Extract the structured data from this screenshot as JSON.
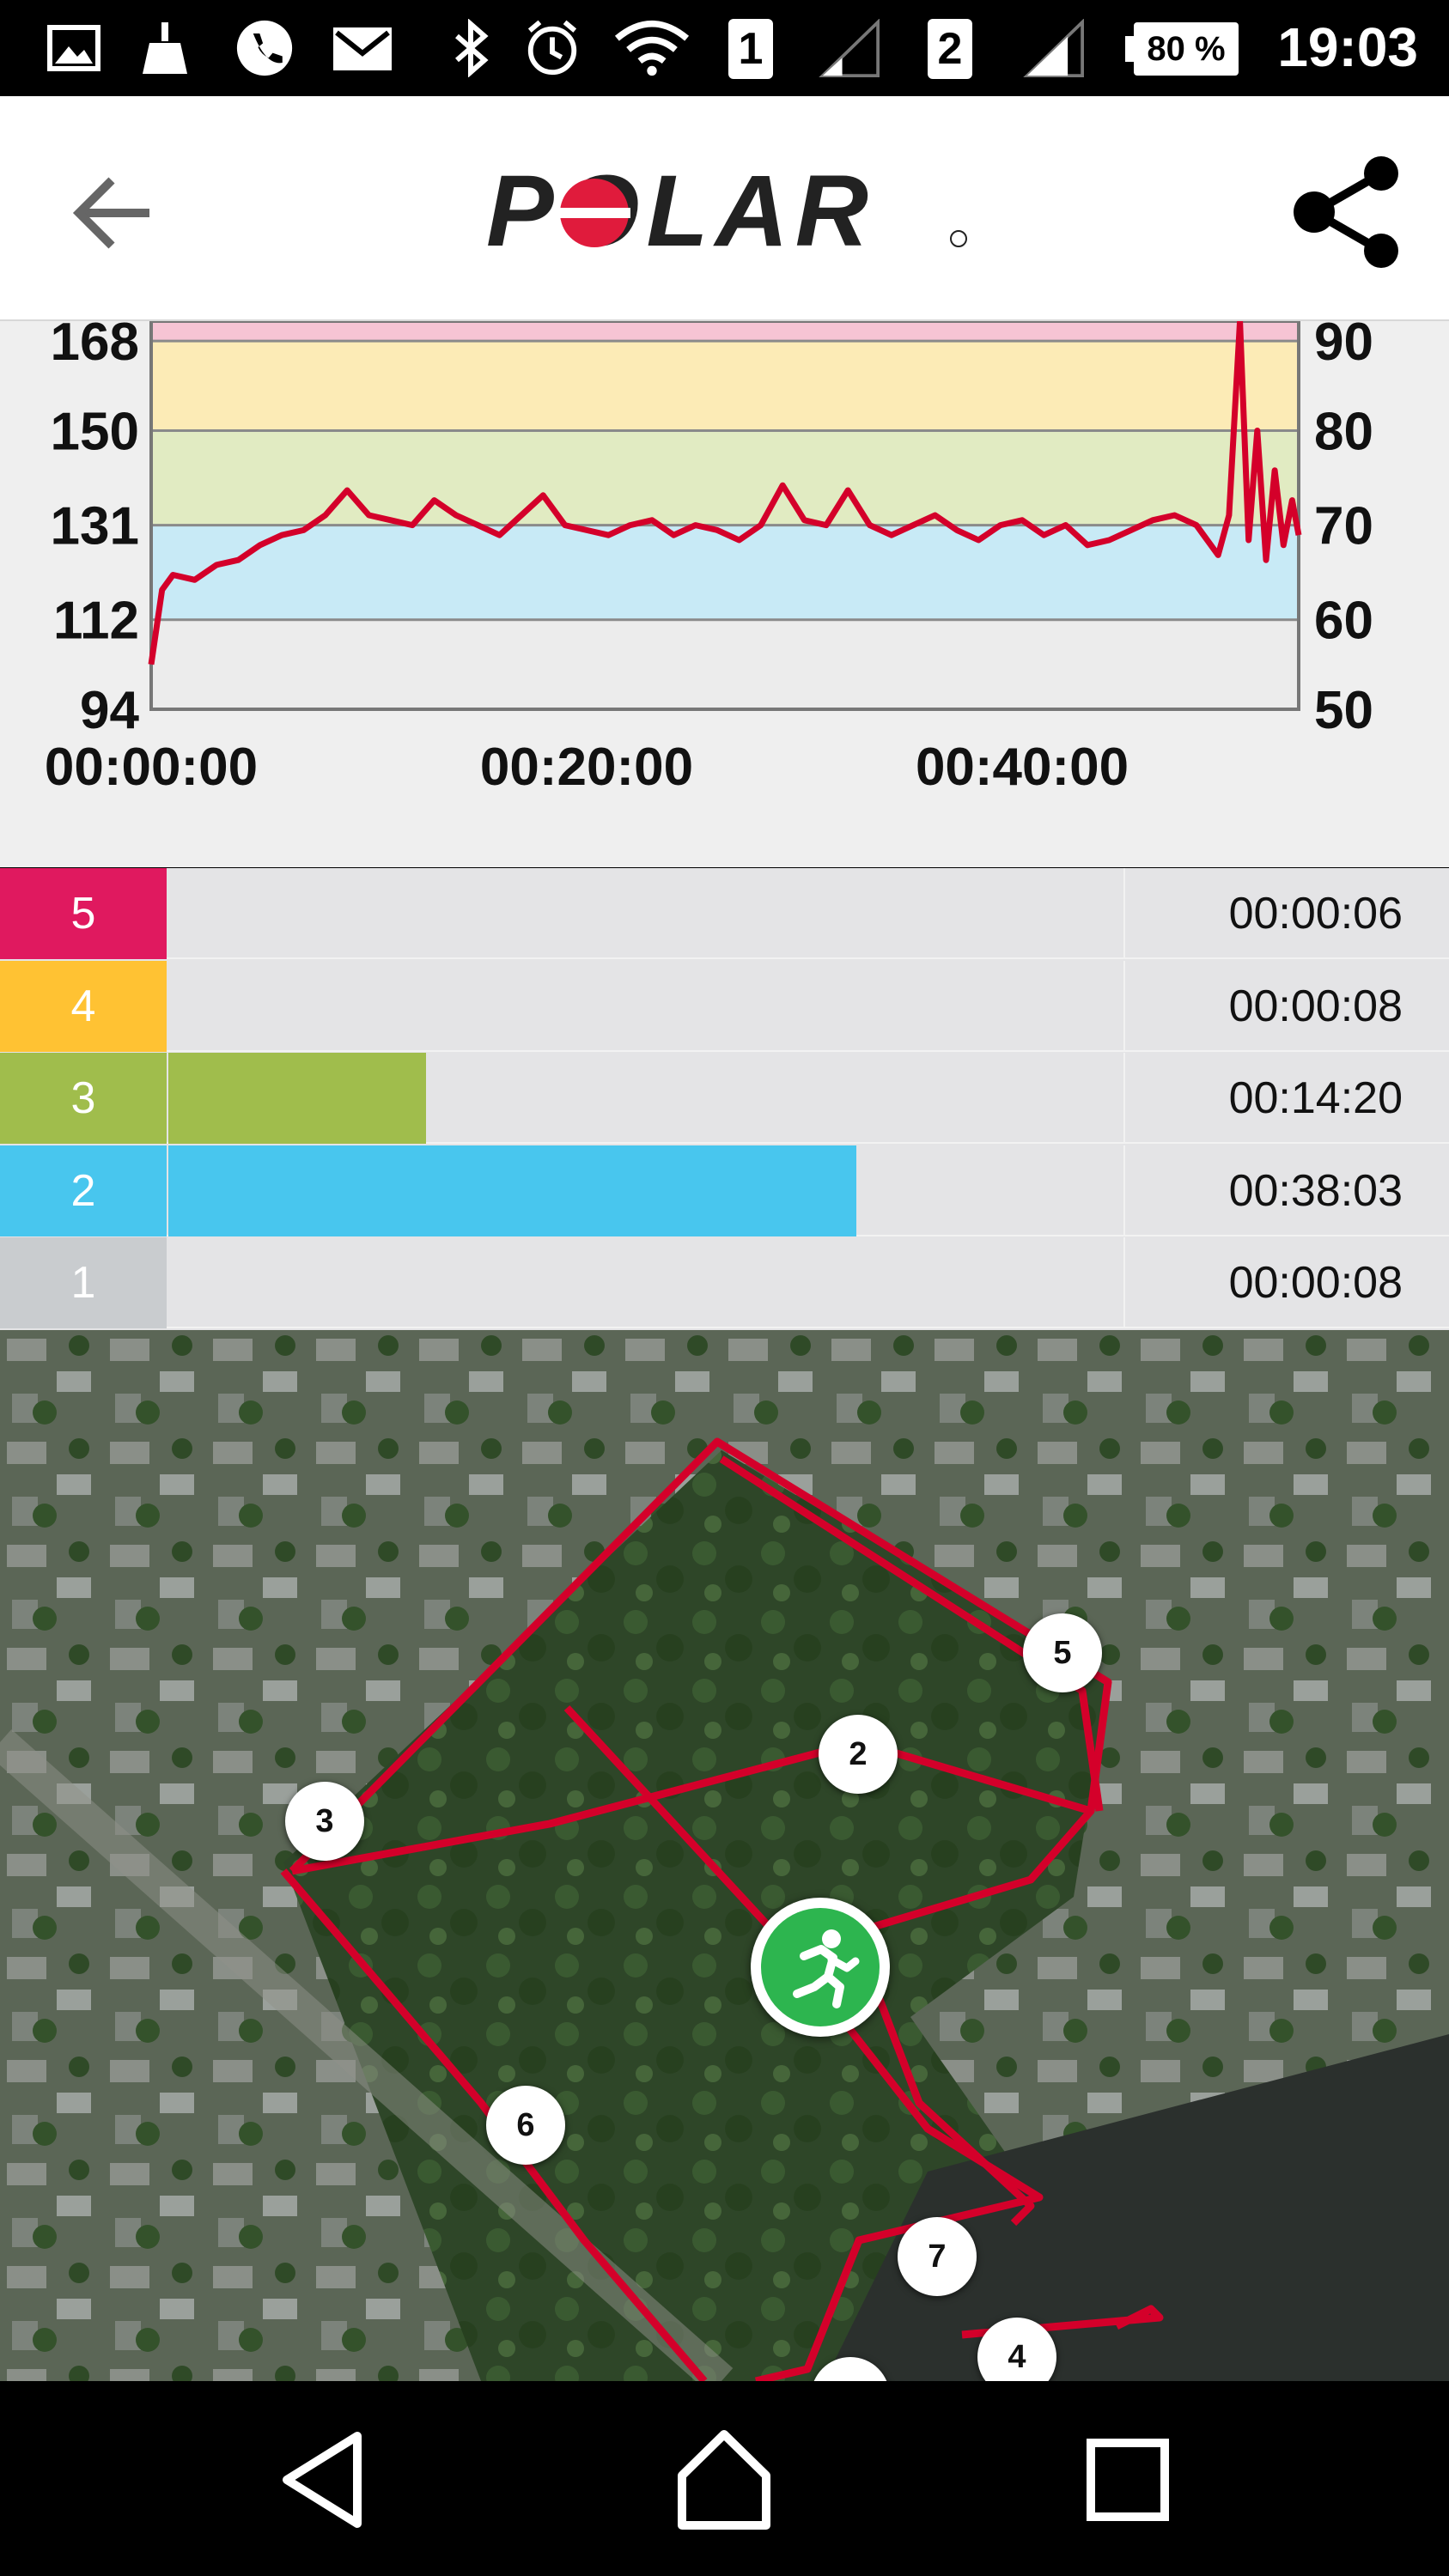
{
  "status_bar": {
    "sim1": "1",
    "sim2": "2",
    "battery": "80 %",
    "time": "19:03"
  },
  "app_bar": {
    "logo_text": "POLAR"
  },
  "colors": {
    "zone5": "#e0195f",
    "zone4": "#ffc233",
    "zone3": "#a0bd4c",
    "zone2": "#48c6ee",
    "zone1": "#c9cccf",
    "route": "#d4002a",
    "band_pink": "#f6c4d4",
    "band_yellow": "#fcebb6",
    "band_green": "#e1ebc2",
    "band_blue": "#c8eaf6",
    "band_gray": "#ececec"
  },
  "chart_data": {
    "type": "line",
    "y_left_ticks": [
      "168",
      "150",
      "131",
      "112",
      "94"
    ],
    "y_right_ticks": [
      "90",
      "80",
      "70",
      "60",
      "50"
    ],
    "x_ticks": [
      "00:00:00",
      "00:20:00",
      "00:40:00"
    ],
    "ylim": [
      94,
      172
    ],
    "xlim_minutes": [
      0,
      52.7
    ],
    "x_minutes": [
      0,
      0.5,
      1,
      2,
      3,
      4,
      5,
      6,
      7,
      8,
      9,
      10,
      11,
      12,
      13,
      14,
      15,
      16,
      17,
      18,
      19,
      20,
      21,
      22,
      23,
      24,
      25,
      26,
      27,
      28,
      29,
      30,
      31,
      32,
      33,
      34,
      35,
      36,
      37,
      38,
      39,
      40,
      41,
      42,
      43,
      44,
      45,
      46,
      47,
      48,
      49,
      49.5,
      50,
      50.4,
      50.8,
      51.2,
      51.6,
      52,
      52.4,
      52.7
    ],
    "heart_rate": [
      103,
      118,
      121,
      120,
      123,
      124,
      127,
      129,
      130,
      133,
      138,
      133,
      132,
      131,
      136,
      133,
      131,
      129,
      133,
      137,
      131,
      130,
      129,
      131,
      132,
      129,
      131,
      130,
      128,
      131,
      139,
      132,
      131,
      138,
      131,
      129,
      131,
      133,
      130,
      128,
      131,
      132,
      129,
      131,
      127,
      128,
      130,
      132,
      133,
      131,
      125,
      133,
      172,
      128,
      150,
      124,
      142,
      127,
      136,
      129
    ],
    "zones": [
      {
        "zone": "5",
        "time": "00:00:06",
        "fraction": 0.0
      },
      {
        "zone": "4",
        "time": "00:00:08",
        "fraction": 0.0
      },
      {
        "zone": "3",
        "time": "00:14:20",
        "fraction": 0.27
      },
      {
        "zone": "2",
        "time": "00:38:03",
        "fraction": 0.72
      },
      {
        "zone": "1",
        "time": "00:00:08",
        "fraction": 0.0
      }
    ]
  },
  "map": {
    "markers": [
      "2",
      "3",
      "4",
      "5",
      "6",
      "7"
    ]
  }
}
